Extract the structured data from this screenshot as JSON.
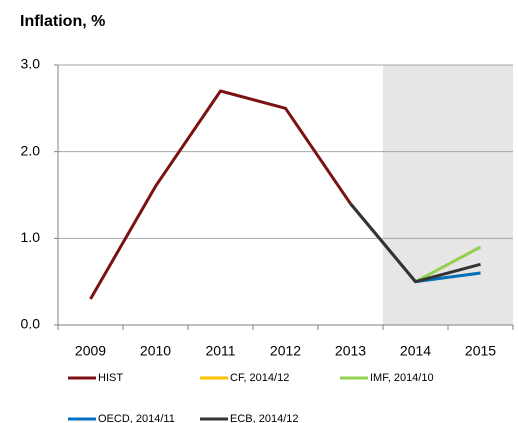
{
  "chart_data": {
    "type": "line",
    "title": "Inflation, %",
    "categories": [
      "2009",
      "2010",
      "2011",
      "2012",
      "2013",
      "2014",
      "2015"
    ],
    "series": [
      {
        "name": "HIST",
        "color": "#7b1113",
        "values": [
          0.3,
          1.6,
          2.7,
          2.5,
          1.4,
          null,
          null
        ]
      },
      {
        "name": "CF, 2014/12",
        "color": "#ffc000",
        "values": [
          null,
          null,
          null,
          null,
          1.4,
          0.5,
          0.6
        ]
      },
      {
        "name": "IMF, 2014/10",
        "color": "#92d050",
        "values": [
          null,
          null,
          null,
          null,
          1.4,
          0.5,
          0.9
        ]
      },
      {
        "name": "OECD, 2014/11",
        "color": "#0070c0",
        "values": [
          null,
          null,
          null,
          null,
          1.4,
          0.5,
          0.6
        ]
      },
      {
        "name": "ECB, 2014/12",
        "color": "#333333",
        "values": [
          null,
          null,
          null,
          null,
          1.4,
          0.5,
          0.7
        ]
      }
    ],
    "ylim": [
      0,
      3
    ],
    "yticks": [
      {
        "value": 0,
        "label": "0.0"
      },
      {
        "value": 1,
        "label": "1.0"
      },
      {
        "value": 2,
        "label": "2.0"
      },
      {
        "value": 3,
        "label": "3.0"
      }
    ],
    "grid": true
  }
}
